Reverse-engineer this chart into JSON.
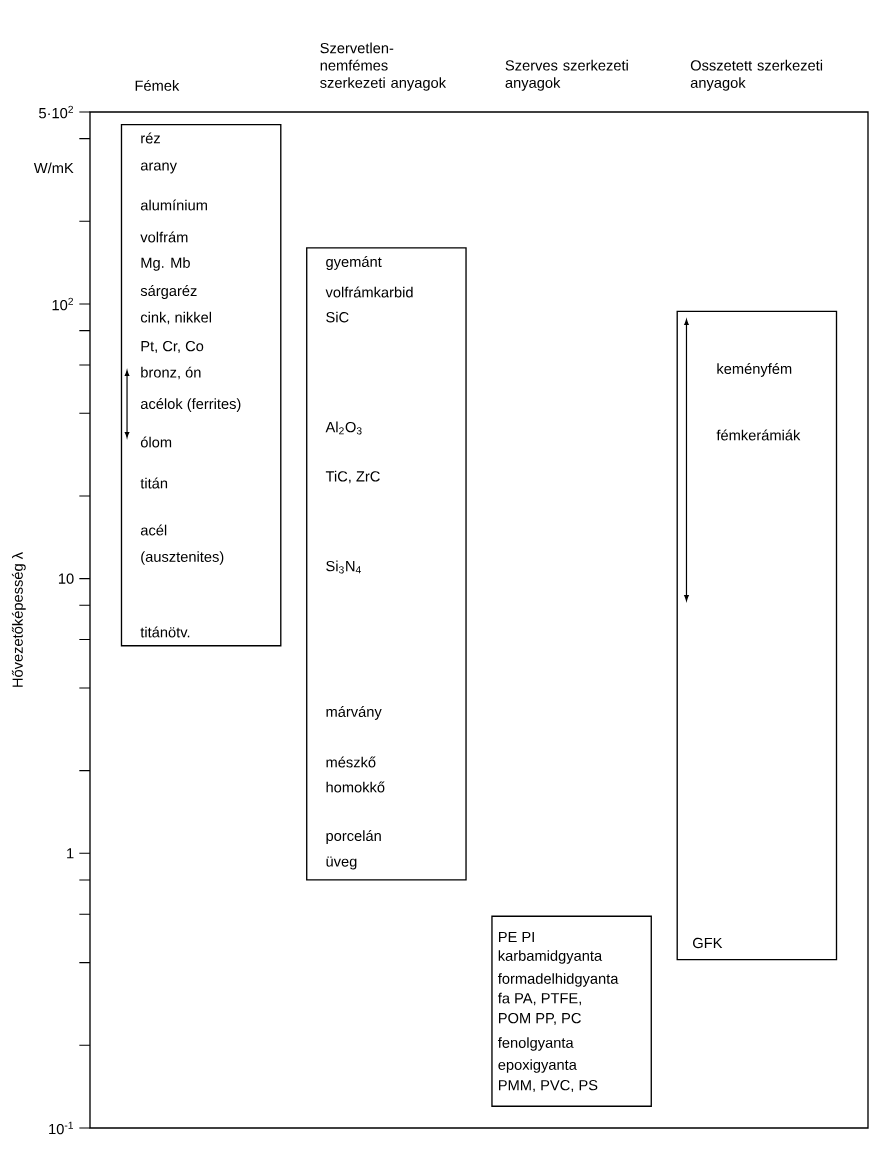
{
  "chart_data": {
    "type": "bar",
    "ylabel": "Hővezetőképesség λ",
    "categories": [
      "Fémek",
      "Szervetlen-nemfémes szerkezeti anyagok",
      "Szerves szerkezeti anyagok",
      "Osszetett szerkezeti anyagok"
    ],
    "series": [
      {
        "color": "#ffffff",
        "base": [
          5.7,
          0.8,
          0.12,
          0.41
        ],
        "values": [
          444.3,
          159.2,
          0.47,
          93.59
        ]
      }
    ],
    "log": "y",
    "ylim": [
      0.1,
      500
    ],
    "yticks": [
      {
        "value": 0.1,
        "label": "10$^{-1}$"
      },
      {
        "value": 0.2,
        "label": null
      },
      {
        "value": 0.4,
        "label": null
      },
      {
        "value": 0.6,
        "label": null
      },
      {
        "value": 0.8,
        "label": null
      },
      1,
      {
        "value": 2,
        "label": null
      },
      {
        "value": 4,
        "label": null
      },
      {
        "value": 6,
        "label": null
      },
      {
        "value": 8,
        "label": null
      },
      10,
      {
        "value": 20,
        "label": null
      },
      {
        "value": 40,
        "label": null
      },
      {
        "value": 60,
        "label": null
      },
      {
        "value": 80,
        "label": null
      },
      {
        "value": 100,
        "label": "10$^{2}$"
      },
      {
        "value": 200,
        "label": null
      },
      {
        "value": 400,
        "label": null
      },
      {
        "value": 500,
        "label": "5·10$^{2}$"
      }
    ],
    "annotations": [
      "W/mK",
      "réz",
      "arany",
      "alumínium",
      "volfrám",
      "Mg. Mb",
      "sárgaréz",
      "cink, nikkel",
      "Pt, Cr, Co",
      "bronz, ón",
      "acélok (ferrites)",
      "ólom",
      "titán",
      "acél",
      "(ausztenites)",
      "titánötv.",
      "gyemánt",
      "volfrámkarbid",
      "SiC",
      "Al$_{2}$O$_{3}$",
      "TiC, ZrC",
      "Si$_{3}$N$_{4}$",
      "márvány",
      "mészkő",
      "homokkő",
      "porcelán",
      "üveg",
      "PE PI",
      "karbamidgyanta",
      "formadelhidgyanta",
      "fa PA, PTFE,",
      "POM PP, PC",
      "fenolgyanta",
      "epoxigyanta",
      "PMM, PVC, PS",
      "keményfém",
      "fémkerámiák",
      "GFK"
    ]
  }
}
